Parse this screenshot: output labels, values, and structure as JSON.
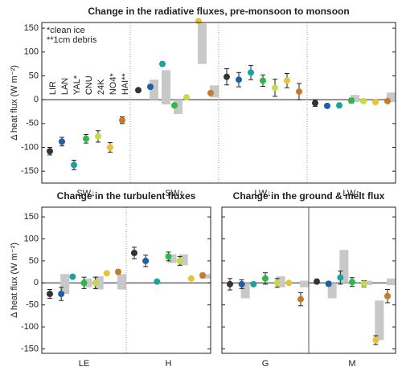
{
  "stations": [
    {
      "name": "LIR",
      "color": "#333333"
    },
    {
      "name": "LAN",
      "color": "#1f5fa8"
    },
    {
      "name": "YAL*",
      "color": "#1aa39a"
    },
    {
      "name": "CNU",
      "color": "#2eb84a"
    },
    {
      "name": "24K",
      "color": "#c8d84a"
    },
    {
      "name": "NO4*",
      "color": "#e8c33a"
    },
    {
      "name": "HAI**",
      "color": "#c77a2a"
    }
  ],
  "chart_data": [
    {
      "type": "dot",
      "title": "Change in the radiative fluxes, pre-monsoon to monsoon",
      "ylabel": "Δ heat flux (W m⁻²)",
      "annotations": [
        "*clean ice",
        "**1cm debris"
      ],
      "ylim": [
        -175,
        162
      ],
      "yticks": [
        -150,
        -100,
        -50,
        0,
        50,
        100,
        150
      ],
      "separator": "dotted",
      "groups": [
        {
          "name": "SW↓",
          "values": [
            -108,
            -88,
            -137,
            -82,
            -77,
            -100,
            -43
          ],
          "errors": [
            8,
            9,
            10,
            9,
            12,
            10,
            7
          ],
          "low": [
            null,
            null,
            null,
            null,
            null,
            null,
            null
          ],
          "high": [
            null,
            null,
            null,
            null,
            null,
            null,
            null
          ]
        },
        {
          "name": "SW↑",
          "values": [
            20,
            27,
            75,
            -12,
            5,
            165,
            14
          ],
          "errors": [
            3,
            4,
            4,
            3,
            2,
            3,
            4
          ],
          "low": [
            null,
            0,
            -10,
            -30,
            null,
            75,
            5
          ],
          "high": [
            null,
            42,
            62,
            0,
            null,
            160,
            30
          ]
        },
        {
          "name": "LW↓",
          "values": [
            48,
            42,
            57,
            40,
            25,
            40,
            17
          ],
          "errors": [
            17,
            15,
            15,
            12,
            18,
            15,
            17
          ],
          "low": [
            null,
            null,
            null,
            null,
            null,
            null,
            null
          ],
          "high": [
            null,
            null,
            null,
            null,
            null,
            null,
            null
          ]
        },
        {
          "name": "LW↑",
          "values": [
            -7,
            -13,
            -12,
            -2,
            -3,
            -5,
            -3
          ],
          "errors": [
            7,
            3,
            3,
            5,
            4,
            3,
            3
          ],
          "low": [
            null,
            null,
            null,
            -5,
            null,
            null,
            -5
          ],
          "high": [
            null,
            null,
            null,
            10,
            null,
            null,
            15
          ]
        }
      ]
    },
    {
      "type": "dot",
      "title": "Change in the turbulent fluxes",
      "ylabel": "Δ heat flux (W m⁻²)",
      "ylim": [
        -160,
        172
      ],
      "yticks": [
        -150,
        -100,
        -50,
        0,
        50,
        100,
        150
      ],
      "separator": "dotted",
      "groups": [
        {
          "name": "LE",
          "values": [
            -25,
            -25,
            14,
            0,
            0,
            22,
            25
          ],
          "errors": [
            10,
            15,
            2,
            13,
            13,
            2,
            5
          ],
          "low": [
            null,
            -25,
            null,
            -10,
            -15,
            null,
            -15
          ],
          "high": [
            null,
            20,
            null,
            10,
            15,
            null,
            20
          ]
        },
        {
          "name": "H",
          "values": [
            68,
            50,
            3,
            60,
            50,
            10,
            17
          ],
          "errors": [
            13,
            13,
            2,
            10,
            10,
            2,
            5
          ],
          "low": [
            null,
            null,
            null,
            45,
            40,
            null,
            10
          ],
          "high": [
            null,
            null,
            null,
            65,
            65,
            null,
            20
          ]
        }
      ]
    },
    {
      "type": "dot",
      "title": "Change in the ground & melt flux",
      "show_ytick_labels": false,
      "ylim": [
        -160,
        172
      ],
      "yticks": [
        -150,
        -100,
        -50,
        0,
        50,
        100,
        150
      ],
      "separator": "solid",
      "groups": [
        {
          "name": "G",
          "values": [
            -3,
            -3,
            -3,
            10,
            0,
            0,
            -37
          ],
          "errors": [
            13,
            10,
            2,
            13,
            10,
            2,
            15
          ],
          "low": [
            null,
            -35,
            null,
            null,
            -10,
            null,
            -10
          ],
          "high": [
            null,
            0,
            null,
            null,
            15,
            null,
            5
          ]
        },
        {
          "name": "M",
          "values": [
            3,
            -2,
            12,
            2,
            -2,
            -130,
            -30
          ],
          "errors": [
            5,
            5,
            15,
            10,
            7,
            10,
            15
          ],
          "low": [
            null,
            -35,
            0,
            null,
            -5,
            -130,
            -5
          ],
          "high": [
            null,
            0,
            75,
            null,
            5,
            -40,
            10
          ]
        }
      ]
    }
  ]
}
